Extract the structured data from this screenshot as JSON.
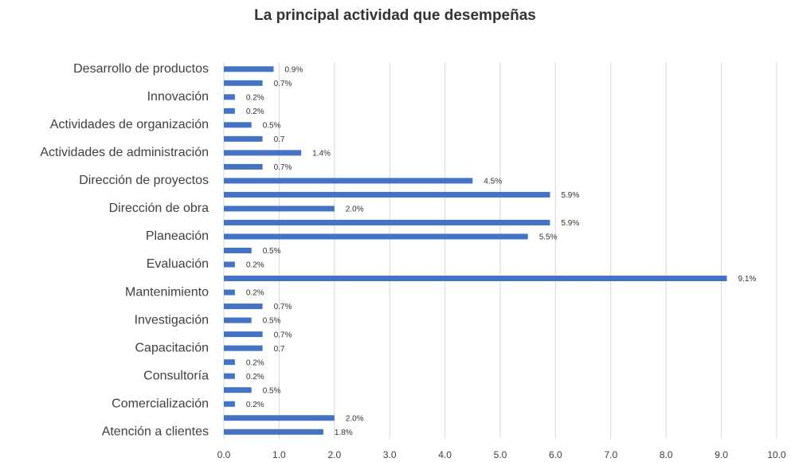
{
  "chart_data": {
    "type": "bar",
    "orientation": "horizontal",
    "title": "La principal actividad que desempeñas",
    "categories": [
      "Desarrollo de productos",
      null,
      "Innovación",
      null,
      "Actividades de organización",
      null,
      "Actividades de administración",
      null,
      "Dirección de proyectos",
      null,
      "Dirección de obra",
      null,
      "Planeación",
      null,
      "Evaluación",
      null,
      "Mantenimiento",
      null,
      "Investigación",
      null,
      "Capacitación",
      null,
      "Consultoría",
      null,
      "Comercialización",
      null,
      "Atención a clientes"
    ],
    "values": [
      0.9,
      0.7,
      0.2,
      0.2,
      0.5,
      0.7,
      1.4,
      0.7,
      4.5,
      5.9,
      2.0,
      5.9,
      5.5,
      0.5,
      0.2,
      9.1,
      0.2,
      0.7,
      0.5,
      0.7,
      0.7,
      0.2,
      0.2,
      0.5,
      0.2,
      2.0,
      1.8
    ],
    "value_labels": [
      "0.9%",
      "0.7%",
      "0.2%",
      "0.2%",
      "0.5%",
      "0.7",
      "1.4%",
      "0.7%",
      "4.5%",
      "5.9%",
      "2.0%",
      "5.9%",
      "5.5%",
      "0.5%",
      "0.2%",
      "9.1%",
      "0.2%",
      "0.7%",
      "0.5%",
      "0.7%",
      "0.7",
      "0.2%",
      "0.2%",
      "0.5%",
      "0.2%",
      "2.0%",
      "1.8%"
    ],
    "color": "#4472c4",
    "xlim": [
      0,
      10
    ],
    "xticks": [
      {
        "value": 0,
        "label": "0.0"
      },
      {
        "value": 1,
        "label": "1.0"
      },
      {
        "value": 2,
        "label": "2.0"
      },
      {
        "value": 3,
        "label": "3.0"
      },
      {
        "value": 4,
        "label": "4.0"
      },
      {
        "value": 5,
        "label": "5.0"
      },
      {
        "value": 6,
        "label": "6.0"
      },
      {
        "value": 7,
        "label": "7.0"
      },
      {
        "value": 8,
        "label": "8.0"
      },
      {
        "value": 9,
        "label": "9.0"
      },
      {
        "value": 10,
        "label": "10.0"
      }
    ],
    "grid": true
  }
}
